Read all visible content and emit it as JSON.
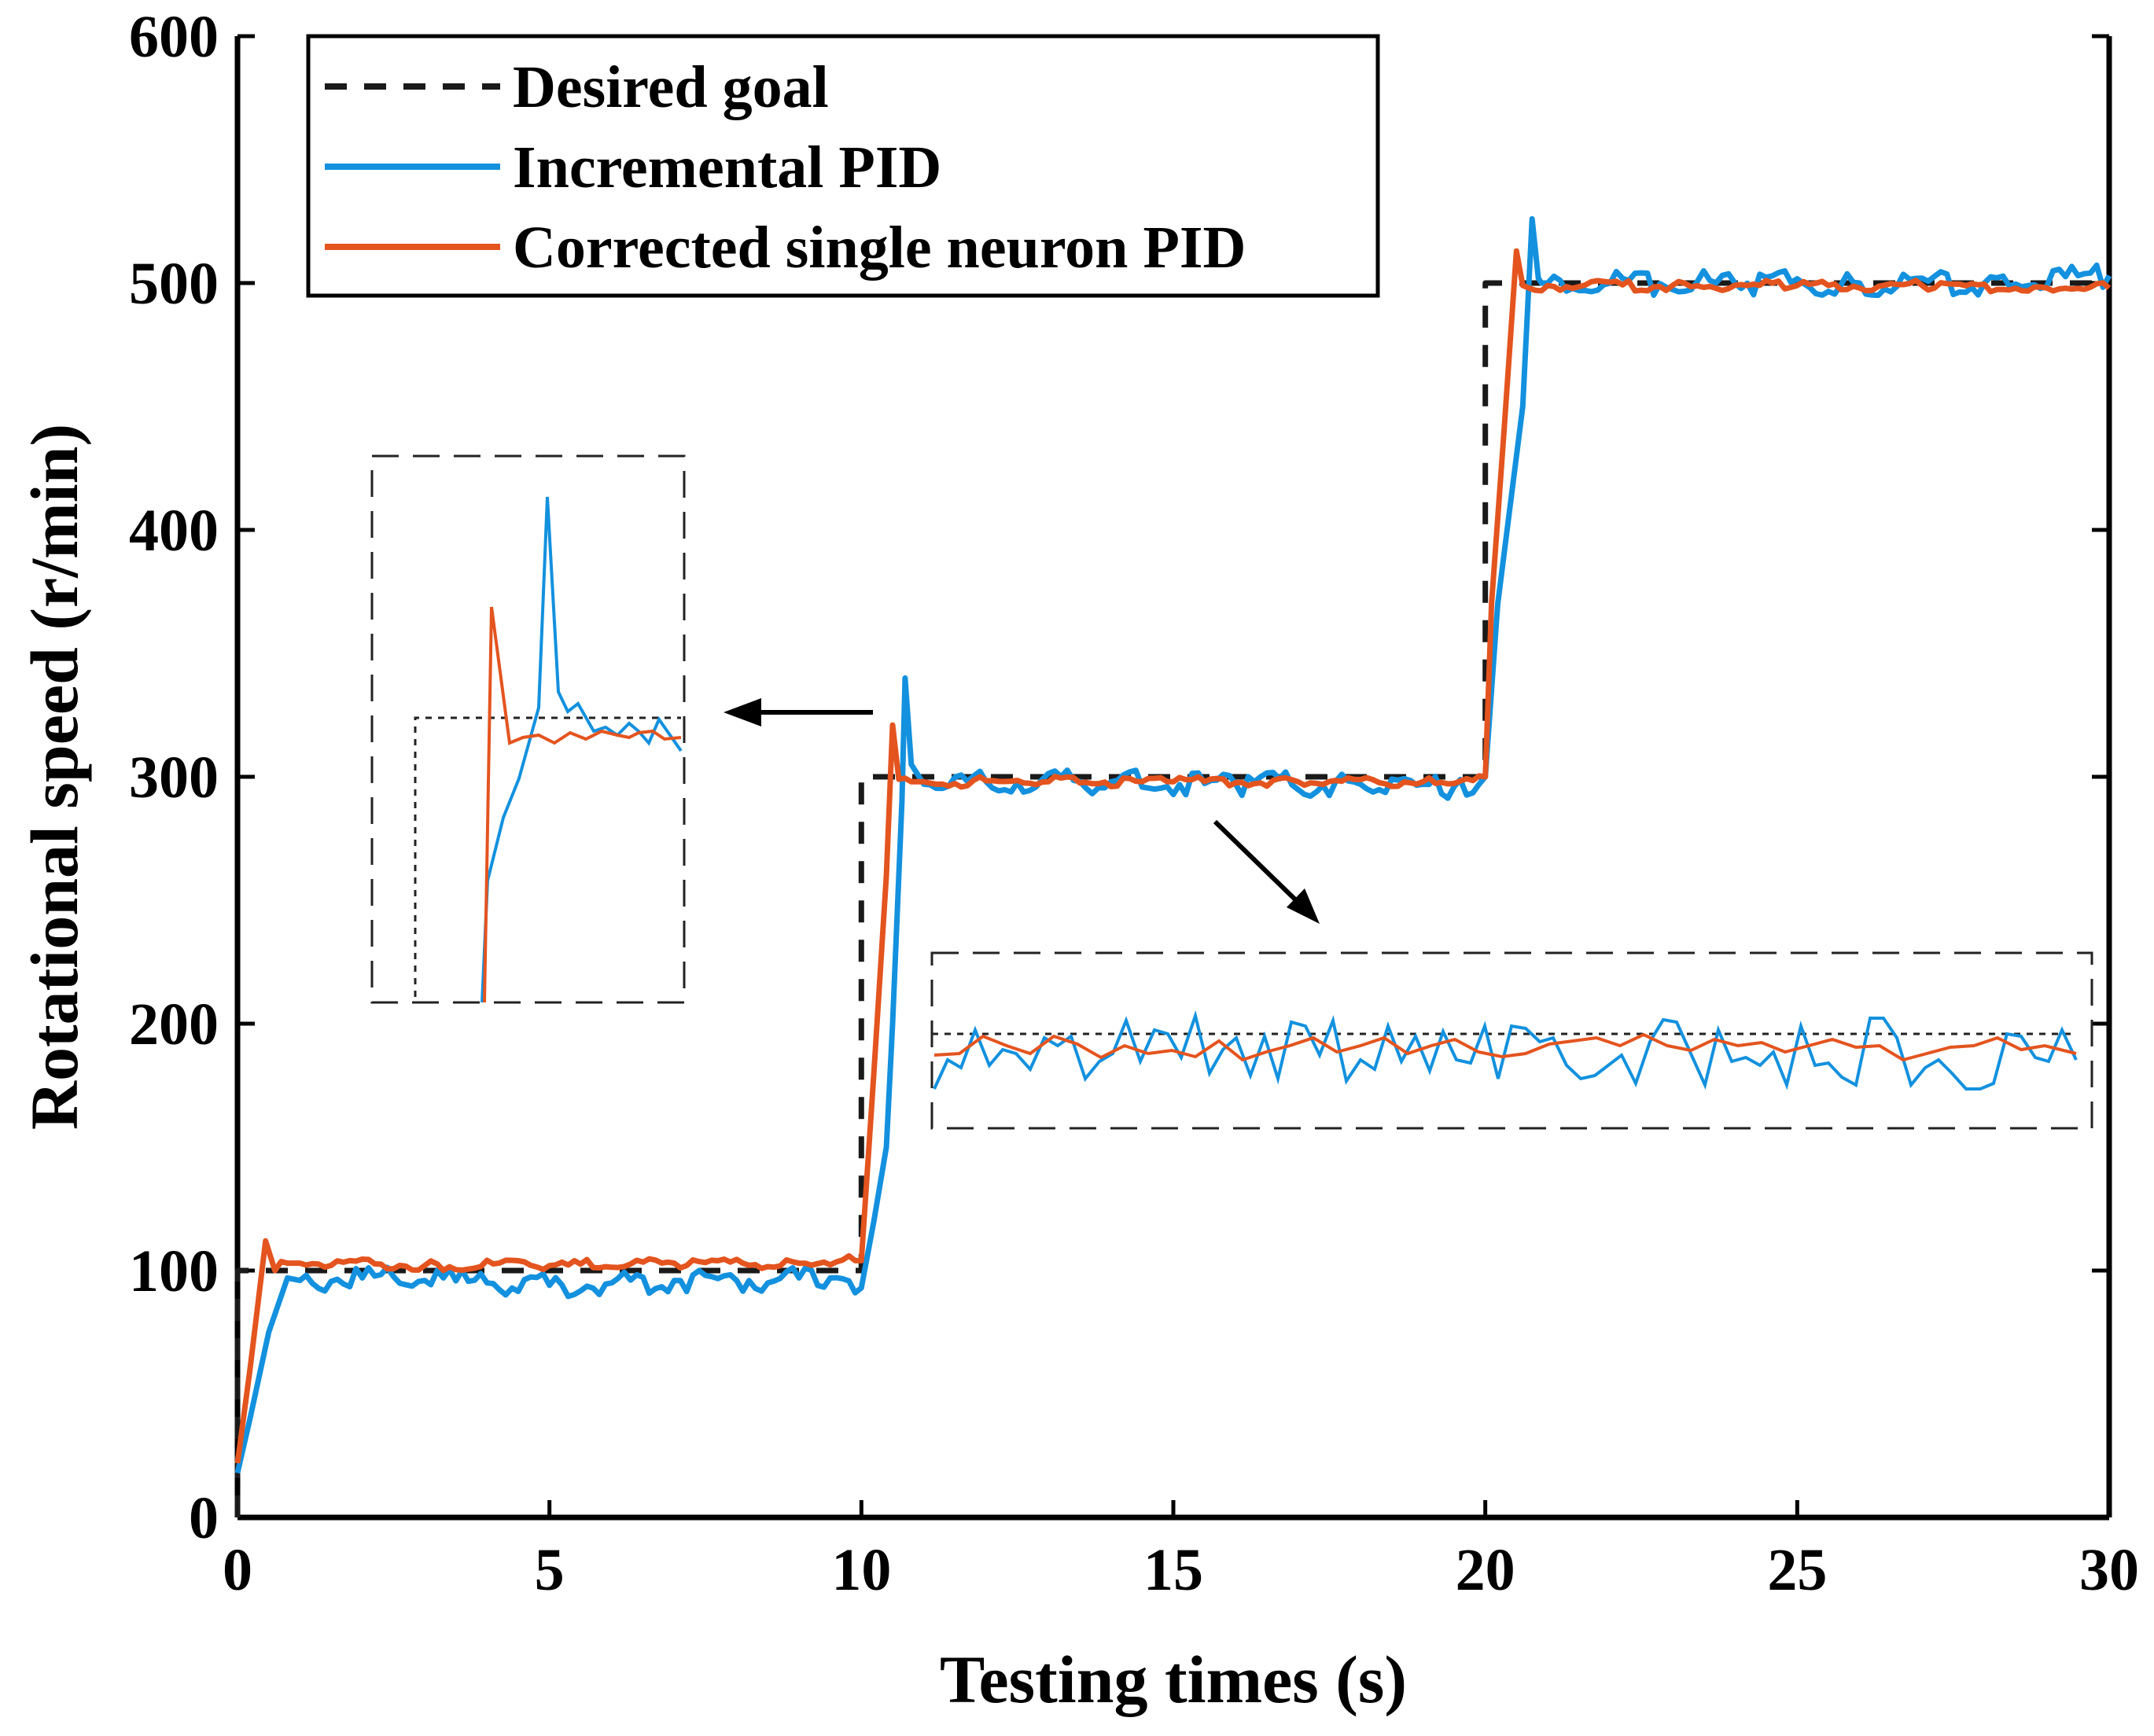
{
  "chart_data": {
    "type": "line",
    "title": "",
    "xlabel": "Testing times (s)",
    "ylabel": "Rotational speed (r/min)",
    "xlim": [
      0,
      30
    ],
    "ylim": [
      0,
      600
    ],
    "xticks": [
      "0",
      "5",
      "10",
      "15",
      "20",
      "25",
      "30"
    ],
    "yticks": [
      "0",
      "100",
      "200",
      "300",
      "400",
      "500",
      "600"
    ],
    "grid": false,
    "legend_position": "top-left",
    "series": [
      {
        "name": "Desired goal",
        "color": "#1a1a1a",
        "style": "dashed",
        "x": [
          0,
          0,
          10,
          10,
          20,
          20,
          30
        ],
        "y": [
          0,
          100,
          100,
          300,
          300,
          500,
          500
        ]
      },
      {
        "name": "Incremental PID",
        "color": "#1391de",
        "style": "solid",
        "x": [
          0,
          0.2,
          0.5,
          0.8,
          1.0,
          2.0,
          3.0,
          4.0,
          5.0,
          6.0,
          7.0,
          8.0,
          9.0,
          9.5,
          9.9,
          10.0,
          10.2,
          10.4,
          10.5,
          10.65,
          10.7,
          10.8,
          11.0,
          12.0,
          14.0,
          16.0,
          18.0,
          19.5,
          20.0,
          20.2,
          20.4,
          20.6,
          20.75,
          20.85,
          20.9,
          21.0,
          22.0,
          24.0,
          26.0,
          28.0,
          30.0
        ],
        "y": [
          18,
          40,
          75,
          97,
          96,
          97,
          96,
          95,
          94,
          95,
          96,
          96,
          97,
          97,
          91,
          93,
          120,
          150,
          200,
          290,
          340,
          305,
          297,
          298,
          298,
          297,
          297,
          296,
          300,
          370,
          410,
          450,
          526,
          502,
          500,
          500,
          500,
          500,
          500,
          500,
          503
        ]
      },
      {
        "name": "Corrected single neuron PID",
        "color": "#e4541f",
        "style": "solid",
        "x": [
          0,
          0.2,
          0.45,
          0.6,
          0.8,
          1.0,
          3.0,
          5.0,
          7.0,
          9.0,
          9.9,
          10.0,
          10.2,
          10.4,
          10.5,
          10.6,
          10.8,
          11.0,
          13.0,
          15.0,
          17.0,
          19.0,
          20.0,
          20.1,
          20.3,
          20.5,
          20.6,
          20.7,
          21.0,
          23.0,
          25.0,
          27.0,
          29.0,
          30.0
        ],
        "y": [
          22,
          60,
          112,
          100,
          103,
          103,
          102,
          102,
          103,
          103,
          104,
          104,
          180,
          260,
          321,
          299,
          298,
          298,
          298,
          298,
          298,
          298,
          300,
          370,
          440,
          513,
          499,
          498,
          499,
          499,
          499,
          499,
          498,
          498
        ]
      }
    ],
    "annotations": [
      "zoom inset of step response near t = 10 s (left dashed box)",
      "zoom inset of steady-state fluctuation at 300 r/min (bottom-right dashed box)"
    ]
  },
  "colors": {
    "axis": "#000000",
    "desired": "#1a1a1a",
    "incremental": "#1391de",
    "corrected": "#e4541f"
  }
}
